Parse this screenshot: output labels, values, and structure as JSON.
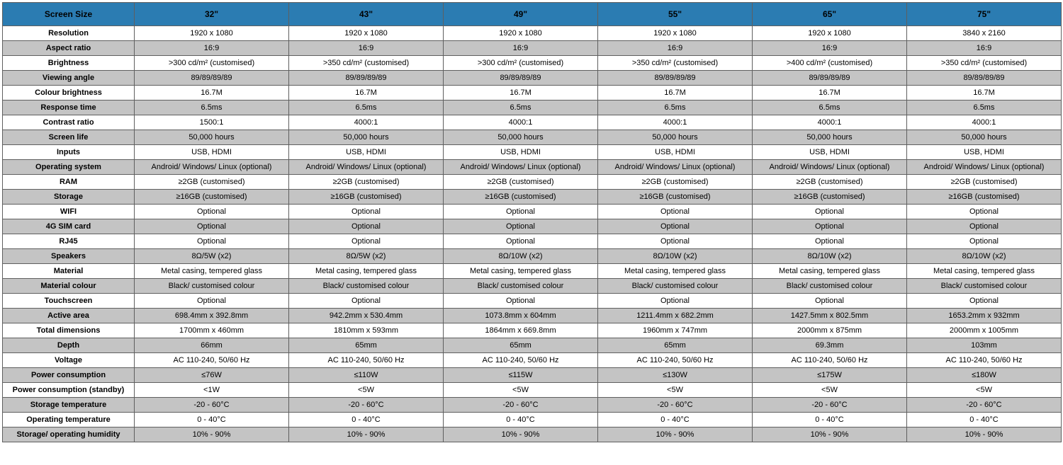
{
  "columns": [
    "Screen Size",
    "32\"",
    "43\"",
    "49\"",
    "55\"",
    "65\"",
    "75\""
  ],
  "rows": [
    {
      "label": "Resolution",
      "values": [
        "1920 x 1080",
        "1920 x 1080",
        "1920 x 1080",
        "1920 x 1080",
        "1920 x 1080",
        "3840 x 2160"
      ]
    },
    {
      "label": "Aspect ratio",
      "values": [
        "16:9",
        "16:9",
        "16:9",
        "16:9",
        "16:9",
        "16:9"
      ]
    },
    {
      "label": "Brightness",
      "values": [
        ">300 cd/m² (customised)",
        ">350 cd/m² (customised)",
        ">300 cd/m² (customised)",
        ">350 cd/m² (customised)",
        ">400 cd/m² (customised)",
        ">350 cd/m² (customised)"
      ]
    },
    {
      "label": "Viewing angle",
      "values": [
        "89/89/89/89",
        "89/89/89/89",
        "89/89/89/89",
        "89/89/89/89",
        "89/89/89/89",
        "89/89/89/89"
      ]
    },
    {
      "label": "Colour brightness",
      "values": [
        "16.7M",
        "16.7M",
        "16.7M",
        "16.7M",
        "16.7M",
        "16.7M"
      ]
    },
    {
      "label": "Response time",
      "values": [
        "6.5ms",
        "6.5ms",
        "6.5ms",
        "6.5ms",
        "6.5ms",
        "6.5ms"
      ]
    },
    {
      "label": "Contrast ratio",
      "values": [
        "1500:1",
        "4000:1",
        "4000:1",
        "4000:1",
        "4000:1",
        "4000:1"
      ]
    },
    {
      "label": "Screen life",
      "values": [
        "50,000 hours",
        "50,000 hours",
        "50,000 hours",
        "50,000 hours",
        "50,000 hours",
        "50,000 hours"
      ]
    },
    {
      "label": "Inputs",
      "values": [
        "USB, HDMI",
        "USB, HDMI",
        "USB, HDMI",
        "USB, HDMI",
        "USB, HDMI",
        "USB, HDMI"
      ]
    },
    {
      "label": "Operating system",
      "values": [
        "Android/ Windows/ Linux (optional)",
        "Android/ Windows/ Linux (optional)",
        "Android/ Windows/ Linux (optional)",
        "Android/ Windows/ Linux (optional)",
        "Android/ Windows/ Linux (optional)",
        "Android/ Windows/ Linux (optional)"
      ]
    },
    {
      "label": "RAM",
      "values": [
        "≥2GB (customised)",
        "≥2GB (customised)",
        "≥2GB (customised)",
        "≥2GB (customised)",
        "≥2GB (customised)",
        "≥2GB (customised)"
      ]
    },
    {
      "label": "Storage",
      "values": [
        "≥16GB (customised)",
        "≥16GB (customised)",
        "≥16GB (customised)",
        "≥16GB (customised)",
        "≥16GB (customised)",
        "≥16GB (customised)"
      ]
    },
    {
      "label": "WIFI",
      "values": [
        "Optional",
        "Optional",
        "Optional",
        "Optional",
        "Optional",
        "Optional"
      ]
    },
    {
      "label": "4G SIM card",
      "values": [
        "Optional",
        "Optional",
        "Optional",
        "Optional",
        "Optional",
        "Optional"
      ]
    },
    {
      "label": "RJ45",
      "values": [
        "Optional",
        "Optional",
        "Optional",
        "Optional",
        "Optional",
        "Optional"
      ]
    },
    {
      "label": "Speakers",
      "values": [
        "8Ω/5W (x2)",
        "8Ω/5W (x2)",
        "8Ω/10W (x2)",
        "8Ω/10W (x2)",
        "8Ω/10W (x2)",
        "8Ω/10W (x2)"
      ]
    },
    {
      "label": "Material",
      "values": [
        "Metal casing, tempered glass",
        "Metal casing, tempered glass",
        "Metal casing, tempered glass",
        "Metal casing, tempered glass",
        "Metal casing, tempered glass",
        "Metal casing, tempered glass"
      ]
    },
    {
      "label": "Material colour",
      "values": [
        "Black/ customised colour",
        "Black/ customised colour",
        "Black/ customised colour",
        "Black/ customised colour",
        "Black/ customised colour",
        "Black/ customised colour"
      ]
    },
    {
      "label": "Touchscreen",
      "values": [
        "Optional",
        "Optional",
        "Optional",
        "Optional",
        "Optional",
        "Optional"
      ]
    },
    {
      "label": "Active area",
      "values": [
        "698.4mm x 392.8mm",
        "942.2mm x 530.4mm",
        "1073.8mm x 604mm",
        "1211.4mm x 682.2mm",
        "1427.5mm x 802.5mm",
        "1653.2mm x 932mm"
      ]
    },
    {
      "label": "Total dimensions",
      "values": [
        "1700mm x 460mm",
        "1810mm x 593mm",
        "1864mm x 669.8mm",
        "1960mm x 747mm",
        "2000mm x 875mm",
        "2000mm x 1005mm"
      ]
    },
    {
      "label": "Depth",
      "values": [
        "66mm",
        "65mm",
        "65mm",
        "65mm",
        "69.3mm",
        "103mm"
      ]
    },
    {
      "label": "Voltage",
      "values": [
        "AC 110-240, 50/60 Hz",
        "AC 110-240, 50/60 Hz",
        "AC 110-240, 50/60 Hz",
        "AC 110-240, 50/60 Hz",
        "AC 110-240, 50/60 Hz",
        "AC 110-240, 50/60 Hz"
      ]
    },
    {
      "label": "Power consumption",
      "values": [
        "≤76W",
        "≤110W",
        "≤115W",
        "≤130W",
        "≤175W",
        "≤180W"
      ]
    },
    {
      "label": "Power consumption (standby)",
      "values": [
        "<1W",
        "<5W",
        "<5W",
        "<5W",
        "<5W",
        "<5W"
      ]
    },
    {
      "label": "Storage temperature",
      "values": [
        "-20 - 60°C",
        "-20 - 60°C",
        "-20 - 60°C",
        "-20 - 60°C",
        "-20 - 60°C",
        "-20 - 60°C"
      ]
    },
    {
      "label": "Operating temperature",
      "values": [
        "0 - 40°C",
        "0 - 40°C",
        "0 - 40°C",
        "0 - 40°C",
        "0 - 40°C",
        "0 - 40°C"
      ]
    },
    {
      "label": "Storage/ operating humidity",
      "values": [
        "10% - 90%",
        "10% - 90%",
        "10% - 90%",
        "10% - 90%",
        "10% - 90%",
        "10% - 90%"
      ]
    }
  ]
}
